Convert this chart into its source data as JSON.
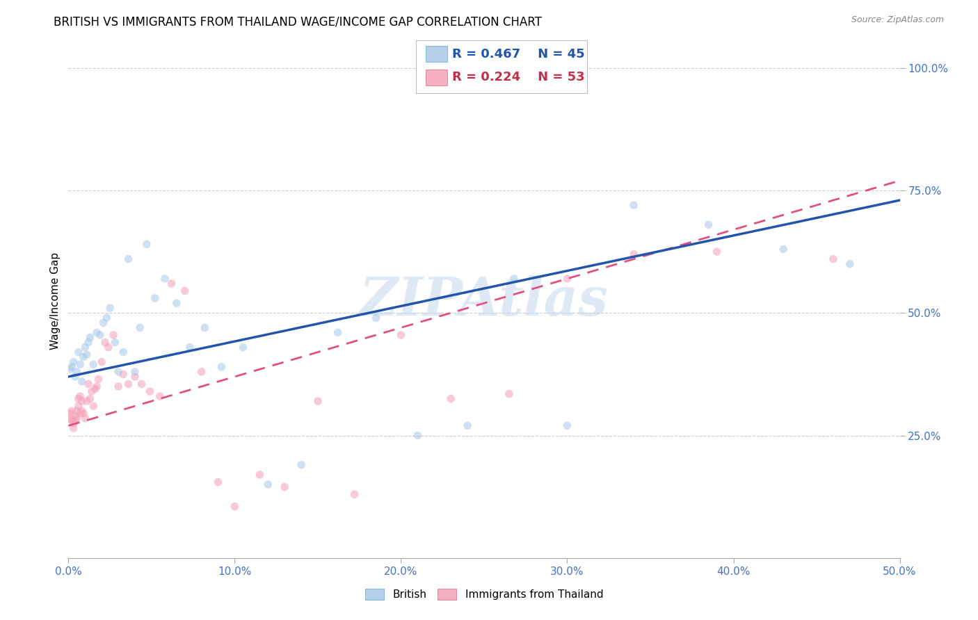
{
  "title": "BRITISH VS IMMIGRANTS FROM THAILAND WAGE/INCOME GAP CORRELATION CHART",
  "source": "Source: ZipAtlas.com",
  "ylabel": "Wage/Income Gap",
  "xmin": 0.0,
  "xmax": 0.5,
  "ymin": 0.0,
  "ymax": 1.05,
  "xticks": [
    0.0,
    0.1,
    0.2,
    0.3,
    0.4,
    0.5
  ],
  "xtick_labels": [
    "0.0%",
    "10.0%",
    "20.0%",
    "30.0%",
    "40.0%",
    "50.0%"
  ],
  "ytick_labels": [
    "25.0%",
    "50.0%",
    "75.0%",
    "100.0%"
  ],
  "ytick_positions": [
    0.25,
    0.5,
    0.75,
    1.0
  ],
  "british_color": "#a8c8e8",
  "thailand_color": "#f4a0b8",
  "trendline_british_color": "#2255aa",
  "trendline_thailand_color": "#e05080",
  "watermark": "ZIPAtlas",
  "legend_R_british": "R = 0.467",
  "legend_N_british": "N = 45",
  "legend_R_thailand": "R = 0.224",
  "legend_N_thailand": "N = 53",
  "british_x": [
    0.001,
    0.002,
    0.003,
    0.004,
    0.005,
    0.006,
    0.007,
    0.008,
    0.009,
    0.01,
    0.011,
    0.012,
    0.013,
    0.015,
    0.017,
    0.019,
    0.021,
    0.023,
    0.025,
    0.028,
    0.03,
    0.033,
    0.036,
    0.04,
    0.043,
    0.047,
    0.052,
    0.058,
    0.065,
    0.073,
    0.082,
    0.092,
    0.105,
    0.12,
    0.14,
    0.162,
    0.185,
    0.21,
    0.24,
    0.268,
    0.3,
    0.34,
    0.385,
    0.43,
    0.47
  ],
  "british_y": [
    0.385,
    0.39,
    0.4,
    0.37,
    0.38,
    0.42,
    0.395,
    0.36,
    0.41,
    0.43,
    0.415,
    0.44,
    0.45,
    0.395,
    0.46,
    0.455,
    0.48,
    0.49,
    0.51,
    0.44,
    0.38,
    0.42,
    0.61,
    0.38,
    0.47,
    0.64,
    0.53,
    0.57,
    0.52,
    0.43,
    0.47,
    0.39,
    0.43,
    0.15,
    0.19,
    0.46,
    0.49,
    0.25,
    0.27,
    0.57,
    0.27,
    0.72,
    0.68,
    0.63,
    0.6
  ],
  "thailand_x": [
    0.001,
    0.001,
    0.002,
    0.002,
    0.003,
    0.003,
    0.004,
    0.004,
    0.005,
    0.005,
    0.006,
    0.006,
    0.007,
    0.007,
    0.008,
    0.008,
    0.009,
    0.01,
    0.011,
    0.012,
    0.013,
    0.014,
    0.015,
    0.016,
    0.017,
    0.018,
    0.02,
    0.022,
    0.024,
    0.027,
    0.03,
    0.033,
    0.036,
    0.04,
    0.044,
    0.049,
    0.055,
    0.062,
    0.07,
    0.08,
    0.09,
    0.1,
    0.115,
    0.13,
    0.15,
    0.172,
    0.2,
    0.23,
    0.265,
    0.3,
    0.34,
    0.39,
    0.46
  ],
  "thailand_y": [
    0.285,
    0.295,
    0.28,
    0.3,
    0.265,
    0.275,
    0.28,
    0.29,
    0.285,
    0.3,
    0.31,
    0.325,
    0.295,
    0.33,
    0.3,
    0.32,
    0.295,
    0.285,
    0.32,
    0.355,
    0.325,
    0.34,
    0.31,
    0.345,
    0.35,
    0.365,
    0.4,
    0.44,
    0.43,
    0.455,
    0.35,
    0.375,
    0.355,
    0.37,
    0.355,
    0.34,
    0.33,
    0.56,
    0.545,
    0.38,
    0.155,
    0.105,
    0.17,
    0.145,
    0.32,
    0.13,
    0.455,
    0.325,
    0.335,
    0.57,
    0.62,
    0.625,
    0.61
  ],
  "background_color": "#ffffff",
  "grid_color": "#cccccc",
  "title_fontsize": 12,
  "label_fontsize": 11,
  "tick_fontsize": 11,
  "marker_size": 70,
  "marker_alpha": 0.55,
  "trendline_british_intercept": 0.37,
  "trendline_british_slope": 0.72,
  "trendline_thailand_intercept": 0.27,
  "trendline_thailand_slope": 1.0
}
